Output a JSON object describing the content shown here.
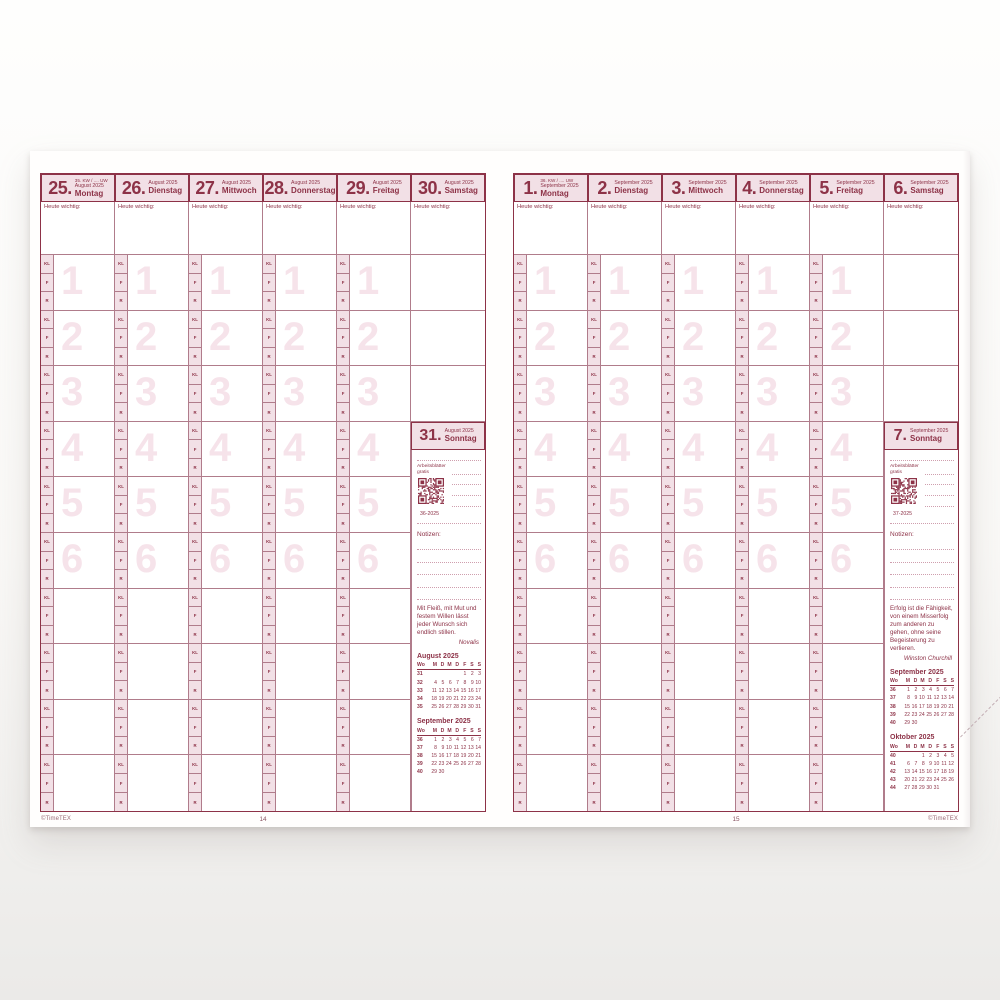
{
  "colors": {
    "accent": "#8d3247",
    "line": "#b07c8b",
    "pink": "#f2e0e6",
    "faint": "#f6e3ea",
    "dotted": "#cf9fae"
  },
  "labels": {
    "heute_wichtig": "Heute wichtig:",
    "strip": [
      "KL",
      "F",
      "R"
    ],
    "worksheets": [
      "Arbeitsblätter",
      "gratis"
    ],
    "notizen": "Notizen:"
  },
  "icons": {
    "scissors": "✂",
    "qr": "qr-code"
  },
  "periods": [
    "1",
    "2",
    "3",
    "4",
    "5",
    "6",
    "",
    "",
    "",
    ""
  ],
  "mini_calendar_header": [
    "Wo",
    "M",
    "D",
    "M",
    "D",
    "F",
    "S",
    "S"
  ],
  "pages": [
    {
      "page_number": "14",
      "brand": "©TimeTEX",
      "days": [
        {
          "num": "25.",
          "kw_line": "35. KW / .... UW",
          "month": "August 2025",
          "name": "Montag"
        },
        {
          "num": "26.",
          "month": "August 2025",
          "name": "Dienstag"
        },
        {
          "num": "27.",
          "month": "August 2025",
          "name": "Mittwoch"
        },
        {
          "num": "28.",
          "month": "August 2025",
          "name": "Donnerstag"
        },
        {
          "num": "29.",
          "month": "August 2025",
          "name": "Freitag"
        },
        {
          "num": "30.",
          "month": "August 2025",
          "name": "Samstag"
        }
      ],
      "sunday": {
        "num": "31.",
        "month": "August 2025",
        "name": "Sonntag",
        "qr_caption": "36-2025",
        "quote": "Mit Fleiß, mit Mut und festem Willen lässt jeder Wunsch sich endlich stillen.",
        "quote_author": "Novalis",
        "calendars": [
          {
            "title": "August 2025",
            "rows": [
              [
                "31",
                "",
                "",
                "",
                "",
                "1",
                "2",
                "3"
              ],
              [
                "32",
                "4",
                "5",
                "6",
                "7",
                "8",
                "9",
                "10"
              ],
              [
                "33",
                "11",
                "12",
                "13",
                "14",
                "15",
                "16",
                "17"
              ],
              [
                "34",
                "18",
                "19",
                "20",
                "21",
                "22",
                "23",
                "24"
              ],
              [
                "35",
                "25",
                "26",
                "27",
                "28",
                "29",
                "30",
                "31"
              ]
            ]
          },
          {
            "title": "September 2025",
            "rows": [
              [
                "36",
                "1",
                "2",
                "3",
                "4",
                "5",
                "6",
                "7"
              ],
              [
                "37",
                "8",
                "9",
                "10",
                "11",
                "12",
                "13",
                "14"
              ],
              [
                "38",
                "15",
                "16",
                "17",
                "18",
                "19",
                "20",
                "21"
              ],
              [
                "39",
                "22",
                "23",
                "24",
                "25",
                "26",
                "27",
                "28"
              ],
              [
                "40",
                "29",
                "30",
                "",
                "",
                "",
                "",
                ""
              ]
            ]
          }
        ]
      }
    },
    {
      "page_number": "15",
      "brand": "©TimeTEX",
      "days": [
        {
          "num": "1.",
          "kw_line": "36. KW / .... UW",
          "month": "September 2025",
          "name": "Montag"
        },
        {
          "num": "2.",
          "month": "September 2025",
          "name": "Dienstag"
        },
        {
          "num": "3.",
          "month": "September 2025",
          "name": "Mittwoch"
        },
        {
          "num": "4.",
          "month": "September 2025",
          "name": "Donnerstag"
        },
        {
          "num": "5.",
          "month": "September 2025",
          "name": "Freitag"
        },
        {
          "num": "6.",
          "month": "September 2025",
          "name": "Samstag"
        }
      ],
      "sunday": {
        "num": "7.",
        "month": "September 2025",
        "name": "Sonntag",
        "qr_caption": "37-2025",
        "quote": "Erfolg ist die Fähigkeit, von einem Misserfolg zum anderen zu gehen, ohne seine Begeisterung zu verlieren.",
        "quote_author": "Winston Churchill",
        "calendars": [
          {
            "title": "September 2025",
            "rows": [
              [
                "36",
                "1",
                "2",
                "3",
                "4",
                "5",
                "6",
                "7"
              ],
              [
                "37",
                "8",
                "9",
                "10",
                "11",
                "12",
                "13",
                "14"
              ],
              [
                "38",
                "15",
                "16",
                "17",
                "18",
                "19",
                "20",
                "21"
              ],
              [
                "39",
                "22",
                "23",
                "24",
                "25",
                "26",
                "27",
                "28"
              ],
              [
                "40",
                "29",
                "30",
                "",
                "",
                "",
                "",
                ""
              ]
            ]
          },
          {
            "title": "Oktober 2025",
            "rows": [
              [
                "40",
                "",
                "",
                "1",
                "2",
                "3",
                "4",
                "5"
              ],
              [
                "41",
                "6",
                "7",
                "8",
                "9",
                "10",
                "11",
                "12"
              ],
              [
                "42",
                "13",
                "14",
                "15",
                "16",
                "17",
                "18",
                "19"
              ],
              [
                "43",
                "20",
                "21",
                "22",
                "23",
                "24",
                "25",
                "26"
              ],
              [
                "44",
                "27",
                "28",
                "29",
                "30",
                "31",
                "",
                ""
              ]
            ]
          }
        ]
      }
    }
  ]
}
